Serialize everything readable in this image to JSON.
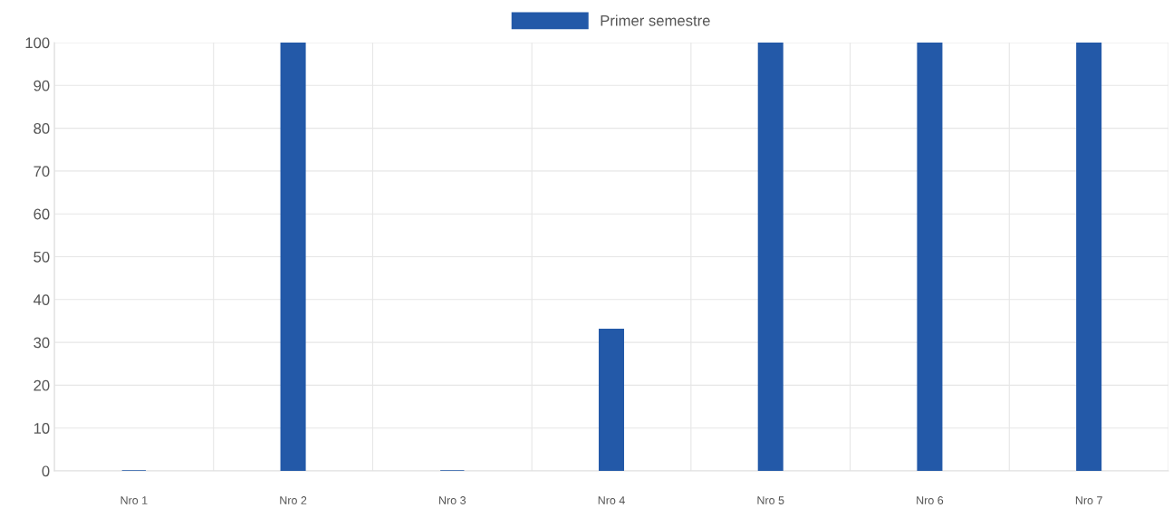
{
  "chart_data": {
    "type": "bar",
    "categories": [
      "Nro 1",
      "Nro 2",
      "Nro 3",
      "Nro 4",
      "Nro 5",
      "Nro 6",
      "Nro 7"
    ],
    "series": [
      {
        "name": "Primer semestre",
        "color": "#2359a8",
        "values": [
          0,
          100,
          0,
          33,
          100,
          100,
          100
        ]
      }
    ],
    "ylim": [
      0,
      100
    ],
    "yticks": [
      0,
      10,
      20,
      30,
      40,
      50,
      60,
      70,
      80,
      90,
      100
    ],
    "grid": true,
    "legend": "top"
  }
}
